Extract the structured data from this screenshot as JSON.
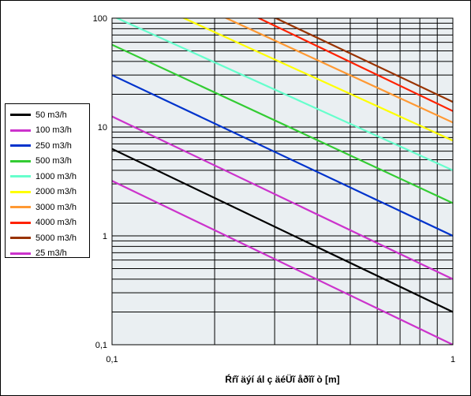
{
  "chart_data": {
    "type": "line",
    "xscale": "log",
    "yscale": "log",
    "xlim": [
      0.1,
      1
    ],
    "ylim": [
      0.1,
      100
    ],
    "grid": true,
    "legend_position": "left",
    "xlabel": "Ŕŕĩ äýí ál ç äéÜĩ åðĩĩ ò [m]",
    "ylabel": "",
    "x_tick_labels": [
      "0,1",
      "1"
    ],
    "y_tick_labels": [
      "0,1",
      "1",
      "10",
      "100"
    ],
    "series": [
      {
        "name": "50 m3/h",
        "color": "#000000",
        "x": [
          0.1,
          1
        ],
        "y": [
          6.3,
          0.2
        ]
      },
      {
        "name": "100 m3/h",
        "color": "#cc33cc",
        "x": [
          0.1,
          1
        ],
        "y": [
          12.5,
          0.4
        ]
      },
      {
        "name": "250 m3/h",
        "color": "#0033cc",
        "x": [
          0.1,
          1
        ],
        "y": [
          30,
          1.0
        ]
      },
      {
        "name": "500 m3/h",
        "color": "#33cc33",
        "x": [
          0.1,
          1
        ],
        "y": [
          57,
          2.0
        ]
      },
      {
        "name": "1000 m3/h",
        "color": "#66ffcc",
        "x": [
          0.1,
          1
        ],
        "y": [
          105,
          4.0
        ]
      },
      {
        "name": "2000 m3/h",
        "color": "#ffff00",
        "x": [
          0.15,
          1
        ],
        "y": [
          112,
          7.5
        ]
      },
      {
        "name": "3000 m3/h",
        "color": "#ff9933",
        "x": [
          0.2,
          1
        ],
        "y": [
          112,
          11
        ]
      },
      {
        "name": "4000 m3/h",
        "color": "#ff2200",
        "x": [
          0.25,
          1
        ],
        "y": [
          112,
          14
        ]
      },
      {
        "name": "5000 m3/h",
        "color": "#993300",
        "x": [
          0.28,
          1
        ],
        "y": [
          112,
          17
        ]
      },
      {
        "name": "25 m3/h",
        "color": "#cc33cc",
        "x": [
          0.1,
          1
        ],
        "y": [
          3.2,
          0.1
        ]
      }
    ]
  }
}
